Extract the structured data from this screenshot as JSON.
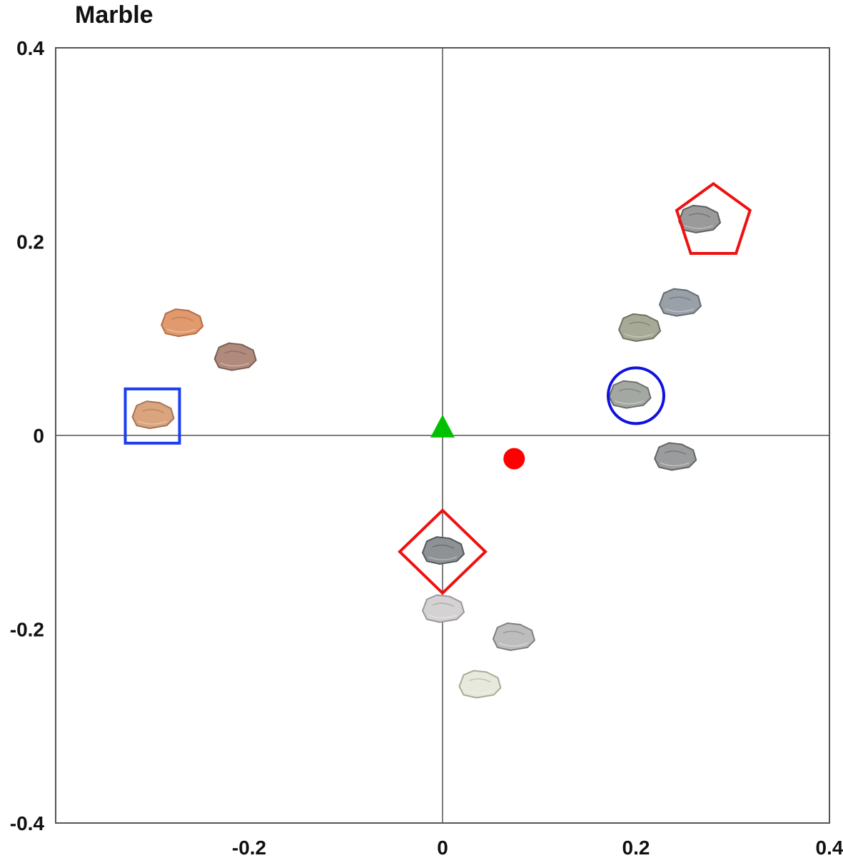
{
  "chart_data": {
    "type": "scatter",
    "title": "Marble",
    "xlabel": "",
    "ylabel": "",
    "xlim": [
      -0.4,
      0.4
    ],
    "ylim": [
      -0.4,
      0.4
    ],
    "x_ticks": [
      -0.2,
      0,
      0.2,
      0.4
    ],
    "x_tick_labels": [
      "-0.2",
      "0",
      "0.2",
      "0.4"
    ],
    "y_ticks": [
      -0.4,
      -0.2,
      0,
      0.2,
      0.4
    ],
    "y_tick_labels": [
      "-0.4",
      "-0.2",
      "0",
      "0.2",
      "0.4"
    ],
    "grid": false,
    "reference_lines": {
      "x": 0,
      "y": 0
    },
    "rock_samples": [
      {
        "x": -0.27,
        "y": 0.117,
        "fill": "#e09a6e",
        "edge": "#b86a44"
      },
      {
        "x": -0.215,
        "y": 0.082,
        "fill": "#b08a7c",
        "edge": "#7a5e54"
      },
      {
        "x": -0.3,
        "y": 0.022,
        "fill": "#d9a47e",
        "edge": "#a87452"
      },
      {
        "x": 0.265,
        "y": 0.224,
        "fill": "#9a9a9a",
        "edge": "#5f5f5f"
      },
      {
        "x": 0.245,
        "y": 0.138,
        "fill": "#9aa0a8",
        "edge": "#666b72"
      },
      {
        "x": 0.203,
        "y": 0.112,
        "fill": "#a8aa98",
        "edge": "#70725f"
      },
      {
        "x": 0.193,
        "y": 0.043,
        "fill": "#a4a8a2",
        "edge": "#6c706a"
      },
      {
        "x": 0.24,
        "y": -0.021,
        "fill": "#9a9c9e",
        "edge": "#626466"
      },
      {
        "x": 0.0,
        "y": -0.118,
        "fill": "#8f9294",
        "edge": "#54575a"
      },
      {
        "x": 0.0,
        "y": -0.178,
        "fill": "#d4d2d2",
        "edge": "#9a9898"
      },
      {
        "x": 0.073,
        "y": -0.207,
        "fill": "#bdbdbd",
        "edge": "#808080"
      },
      {
        "x": 0.038,
        "y": -0.256,
        "fill": "#e6e9dc",
        "edge": "#a8ac98"
      }
    ],
    "markers": [
      {
        "shape": "triangle",
        "x": 0.0,
        "y": 0.006,
        "color": "#00c000",
        "filled": true
      },
      {
        "shape": "circle",
        "x": 0.074,
        "y": -0.024,
        "color": "#ff0000",
        "filled": true
      },
      {
        "shape": "pentagon",
        "x": 0.28,
        "y": 0.22,
        "color": "#ee1111",
        "filled": false
      },
      {
        "shape": "circle",
        "x": 0.2,
        "y": 0.041,
        "color": "#1111dd",
        "filled": false
      },
      {
        "shape": "square",
        "x": -0.3,
        "y": 0.02,
        "color": "#1a3ef0",
        "filled": false
      },
      {
        "shape": "diamond",
        "x": 0.0,
        "y": -0.12,
        "color": "#ee1111",
        "filled": false
      }
    ],
    "axis_color": "#555555",
    "frame_color": "#555555"
  }
}
